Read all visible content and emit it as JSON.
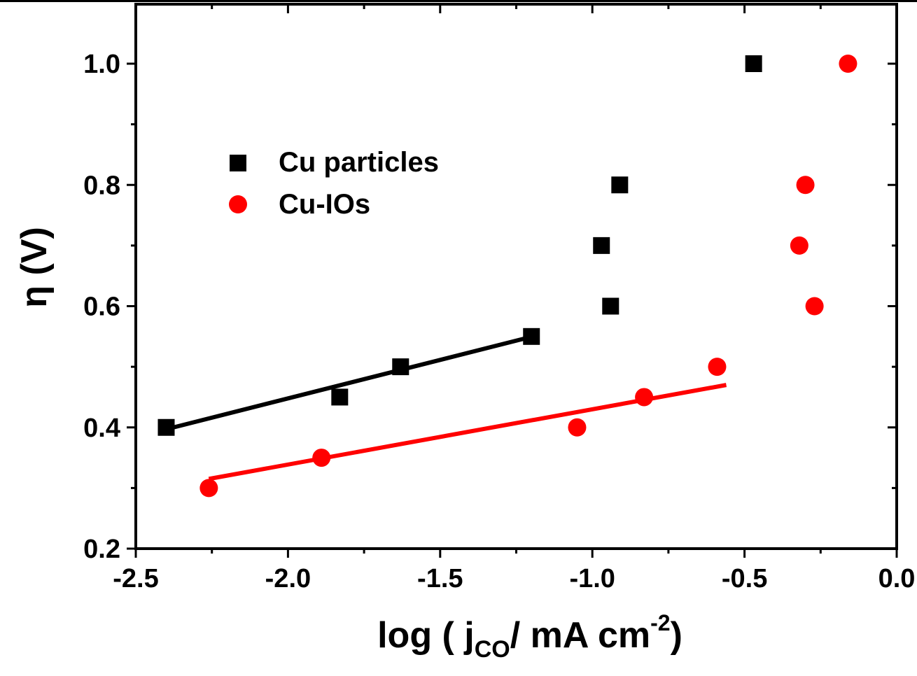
{
  "chart_data": {
    "type": "scatter",
    "xlabel": {
      "prefix": "log ( j",
      "subscript": "CO",
      "middle": "/ mA cm",
      "superscript": "-2",
      "suffix": ")"
    },
    "ylabel": "η (V)",
    "xlim": [
      -2.5,
      0.0
    ],
    "ylim": [
      0.2,
      1.0
    ],
    "x_ticks": [
      {
        "value": -2.5,
        "label": "-2.5"
      },
      {
        "value": -2.0,
        "label": "-2.0"
      },
      {
        "value": -1.5,
        "label": "-1.5"
      },
      {
        "value": -1.0,
        "label": "-1.0"
      },
      {
        "value": -0.5,
        "label": "-0.5"
      },
      {
        "value": 0.0,
        "label": "0.0"
      }
    ],
    "y_ticks": [
      {
        "value": 0.2,
        "label": "0.2"
      },
      {
        "value": 0.4,
        "label": "0.4"
      },
      {
        "value": 0.6,
        "label": "0.6"
      },
      {
        "value": 0.8,
        "label": "0.8"
      },
      {
        "value": 1.0,
        "label": "1.0"
      }
    ],
    "grid": false,
    "legend_position": "upper-left",
    "series": [
      {
        "name": "Cu particles",
        "marker": "square",
        "color": "#000000",
        "points": [
          {
            "x": -2.4,
            "y": 0.4
          },
          {
            "x": -1.83,
            "y": 0.45
          },
          {
            "x": -1.63,
            "y": 0.5
          },
          {
            "x": -1.2,
            "y": 0.55
          },
          {
            "x": -0.94,
            "y": 0.6
          },
          {
            "x": -0.97,
            "y": 0.7
          },
          {
            "x": -0.91,
            "y": 0.8
          },
          {
            "x": -0.47,
            "y": 1.0
          }
        ],
        "fit": {
          "x": [
            -2.4,
            -1.18
          ],
          "y": [
            0.397,
            0.552
          ]
        }
      },
      {
        "name": "Cu-IOs",
        "marker": "circle",
        "color": "#ff0000",
        "points": [
          {
            "x": -2.26,
            "y": 0.3
          },
          {
            "x": -1.89,
            "y": 0.35
          },
          {
            "x": -1.05,
            "y": 0.4
          },
          {
            "x": -0.83,
            "y": 0.45
          },
          {
            "x": -0.59,
            "y": 0.5
          },
          {
            "x": -0.27,
            "y": 0.6
          },
          {
            "x": -0.32,
            "y": 0.7
          },
          {
            "x": -0.3,
            "y": 0.8
          },
          {
            "x": -0.16,
            "y": 1.0
          }
        ],
        "fit": {
          "x": [
            -2.26,
            -0.56
          ],
          "y": [
            0.315,
            0.47
          ]
        }
      }
    ]
  }
}
